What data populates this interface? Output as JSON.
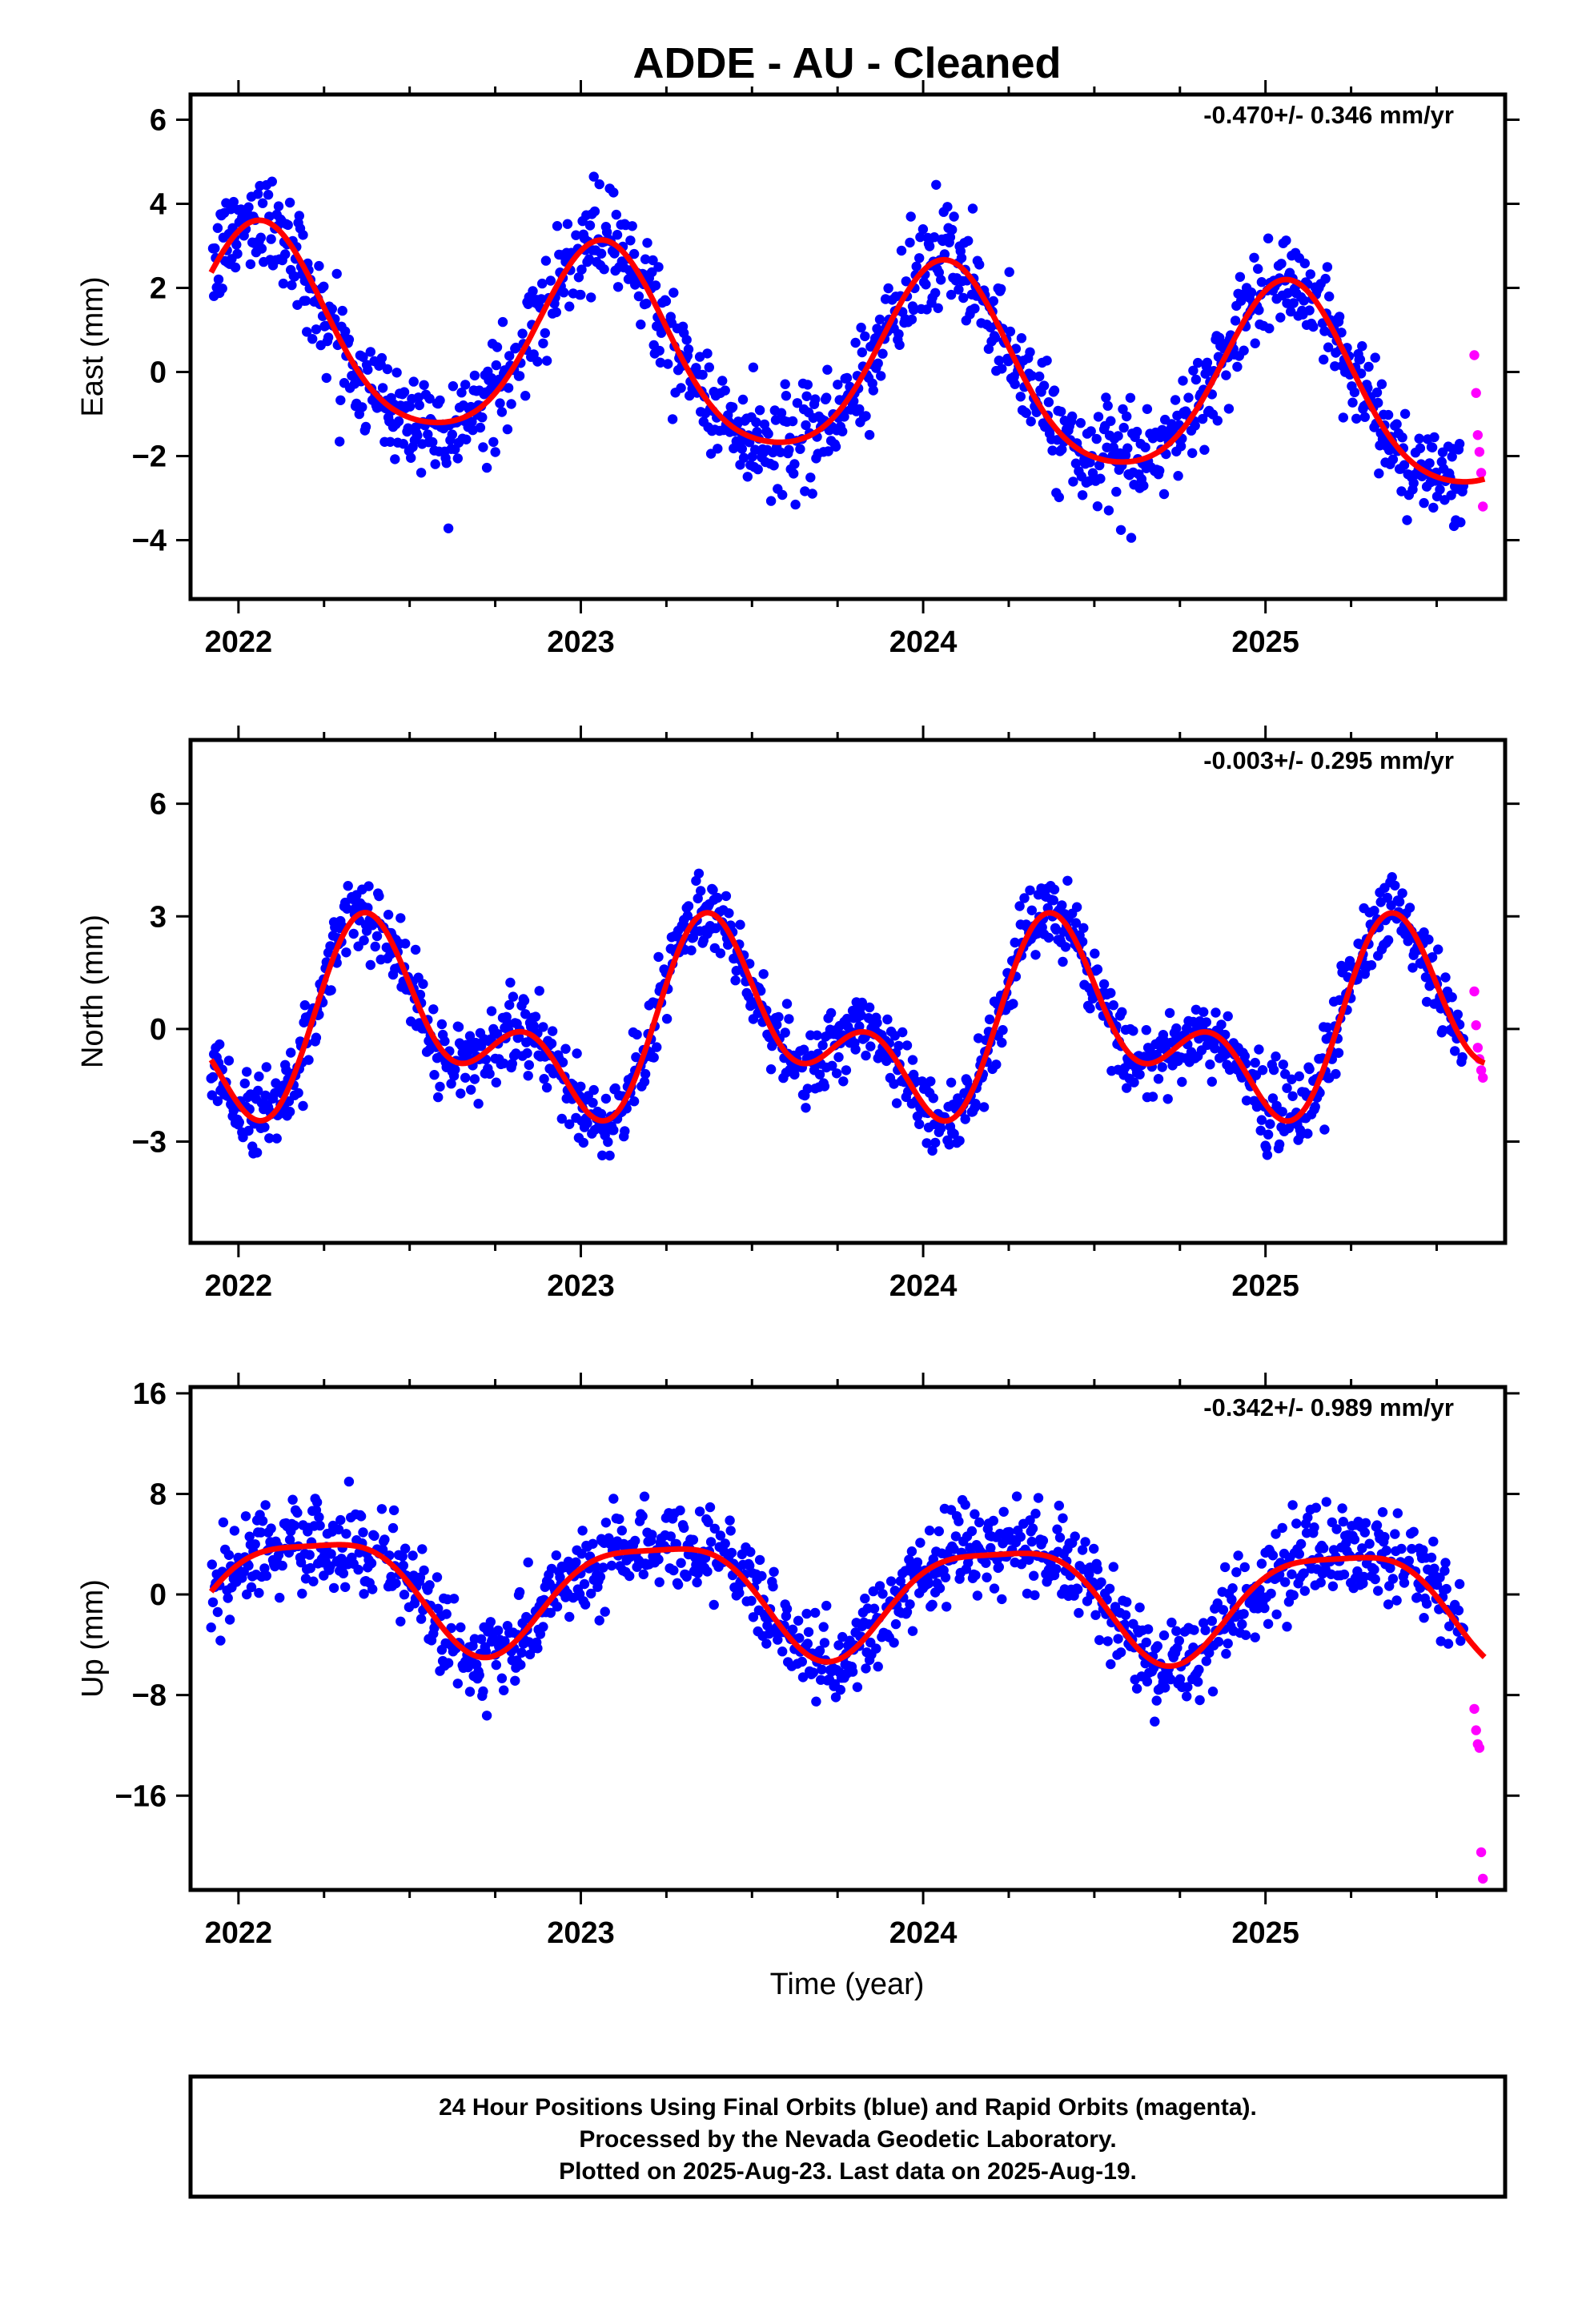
{
  "title": "ADDE  - AU - Cleaned",
  "xlabel": "Time (year)",
  "x_tick_labels": [
    "2022",
    "2023",
    "2024",
    "2025"
  ],
  "footer": {
    "line1": "24 Hour Positions Using Final Orbits (blue) and Rapid Orbits (magenta).",
    "line2": "Processed by the Nevada Geodetic Laboratory.",
    "line3": "Plotted on 2025-Aug-23. Last data on 2025-Aug-19."
  },
  "colors": {
    "final": "#0000ff",
    "rapid": "#ff00ff",
    "fit": "#ff0000",
    "axis": "#000000"
  },
  "chart_data": [
    {
      "type": "scatter",
      "ylabel": "East (mm)",
      "rate_label": "-0.470+/- 0.346 mm/yr",
      "xlim": [
        2021.86,
        2025.7
      ],
      "ylim": [
        -5.4,
        6.6
      ],
      "y_ticks": [
        -4,
        -2,
        0,
        2,
        4,
        6
      ],
      "y_tick_labels": [
        "−4",
        "−2",
        "0",
        "2",
        "4",
        "6"
      ],
      "model": {
        "offset": 1.0,
        "rate": -0.47,
        "t0": 2022.0,
        "annual_sin": 0.9,
        "annual_cos": 2.1,
        "semi_sin": 0.25,
        "semi_cos": 0.25
      },
      "noise": 1.1,
      "series": [
        {
          "kind": "final",
          "x_start": 2021.92,
          "x_end": 2025.58,
          "step": 0.00274,
          "n": 1300
        },
        {
          "kind": "rapid",
          "x": [
            2025.61,
            2025.615,
            2025.62,
            2025.625,
            2025.63,
            2025.635
          ],
          "y": [
            0.4,
            -0.5,
            -1.5,
            -1.9,
            -2.4,
            -3.2
          ]
        }
      ]
    },
    {
      "type": "scatter",
      "ylabel": "North (mm)",
      "rate_label": "-0.003+/- 0.295 mm/yr",
      "xlim": [
        2021.86,
        2025.7
      ],
      "ylim": [
        -5.7,
        7.7
      ],
      "y_ticks": [
        -3,
        0,
        3,
        6
      ],
      "y_tick_labels": [
        "−3",
        "0",
        "3",
        "6"
      ],
      "model": {
        "offset": 0.0,
        "rate": -0.003,
        "t0": 2022.0,
        "annual_sin": 0.8,
        "annual_cos": -1.6,
        "semi_sin": -1.4,
        "semi_cos": -0.4
      },
      "noise": 0.95,
      "series": [
        {
          "kind": "final",
          "x_start": 2021.92,
          "x_end": 2025.58,
          "step": 0.00274,
          "n": 1300
        },
        {
          "kind": "rapid",
          "x": [
            2025.61,
            2025.615,
            2025.62,
            2025.625,
            2025.63,
            2025.635
          ],
          "y": [
            1.0,
            0.1,
            -0.5,
            -0.8,
            -1.1,
            -1.3
          ]
        }
      ]
    },
    {
      "type": "scatter",
      "ylabel": "Up (mm)",
      "rate_label": "-0.342+/- 0.989 mm/yr",
      "xlim": [
        2021.86,
        2025.7
      ],
      "ylim": [
        -23.5,
        16.5
      ],
      "y_ticks": [
        -16,
        -8,
        0,
        8,
        16
      ],
      "y_tick_labels": [
        "−16",
        "−8",
        "0",
        "8",
        "16"
      ],
      "model": {
        "offset": 0.7,
        "rate": -0.342,
        "t0": 2022.0,
        "annual_sin": 4.3,
        "annual_cos": 0.7,
        "semi_sin": -0.5,
        "semi_cos": 1.0
      },
      "noise": 3.2,
      "series": [
        {
          "kind": "final",
          "x_start": 2021.92,
          "x_end": 2025.58,
          "step": 0.00274,
          "n": 1300
        },
        {
          "kind": "rapid",
          "x": [
            2025.61,
            2025.615,
            2025.62,
            2025.625,
            2025.63,
            2025.635
          ],
          "y": [
            -9.1,
            -10.8,
            -11.9,
            -12.2,
            -20.5,
            -22.6
          ]
        }
      ]
    }
  ]
}
